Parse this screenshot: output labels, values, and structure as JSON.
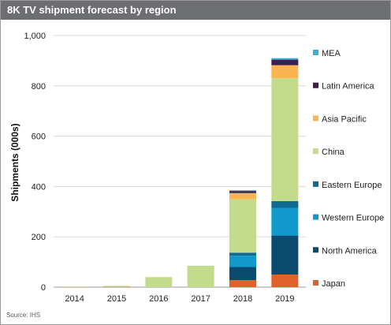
{
  "header": {
    "title": "8K TV shipment forecast by region"
  },
  "footer": {
    "source": "Source: IHS"
  },
  "chart_data": {
    "type": "bar",
    "stacked": true,
    "title": "8K TV shipment forecast by region",
    "xlabel": "",
    "ylabel": "Shipments (000s)",
    "ylim": [
      0,
      1000
    ],
    "yticks": [
      0,
      200,
      400,
      600,
      800,
      1000
    ],
    "ytick_labels": [
      "0",
      "200",
      "400",
      "600",
      "800",
      "1,000"
    ],
    "grid": true,
    "legend_position": "right",
    "categories": [
      "2014",
      "2015",
      "2016",
      "2017",
      "2018",
      "2019"
    ],
    "series": [
      {
        "name": "Japan",
        "color": "#e0622a",
        "values": [
          0.5,
          1,
          0,
          0,
          28,
          50
        ]
      },
      {
        "name": "North America",
        "color": "#0a4a6e",
        "values": [
          0,
          0,
          0,
          0,
          52,
          155
        ]
      },
      {
        "name": "Western Europe",
        "color": "#1199cc",
        "values": [
          0,
          0,
          0,
          0,
          45,
          110
        ]
      },
      {
        "name": "Eastern Europe",
        "color": "#12698f",
        "values": [
          0,
          0,
          0,
          0,
          12,
          27
        ]
      },
      {
        "name": "China",
        "color": "#c3dc8c",
        "values": [
          1.5,
          4,
          40,
          85,
          212,
          488
        ]
      },
      {
        "name": "Asia Pacific",
        "color": "#fbb450",
        "values": [
          0,
          0,
          0,
          0,
          25,
          52
        ]
      },
      {
        "name": "Latin America",
        "color": "#3b1f4e",
        "values": [
          0,
          0,
          0,
          0,
          8,
          22
        ]
      },
      {
        "name": "MEA",
        "color": "#3ab0d8",
        "values": [
          0,
          0,
          0,
          0,
          3,
          6
        ]
      }
    ]
  }
}
